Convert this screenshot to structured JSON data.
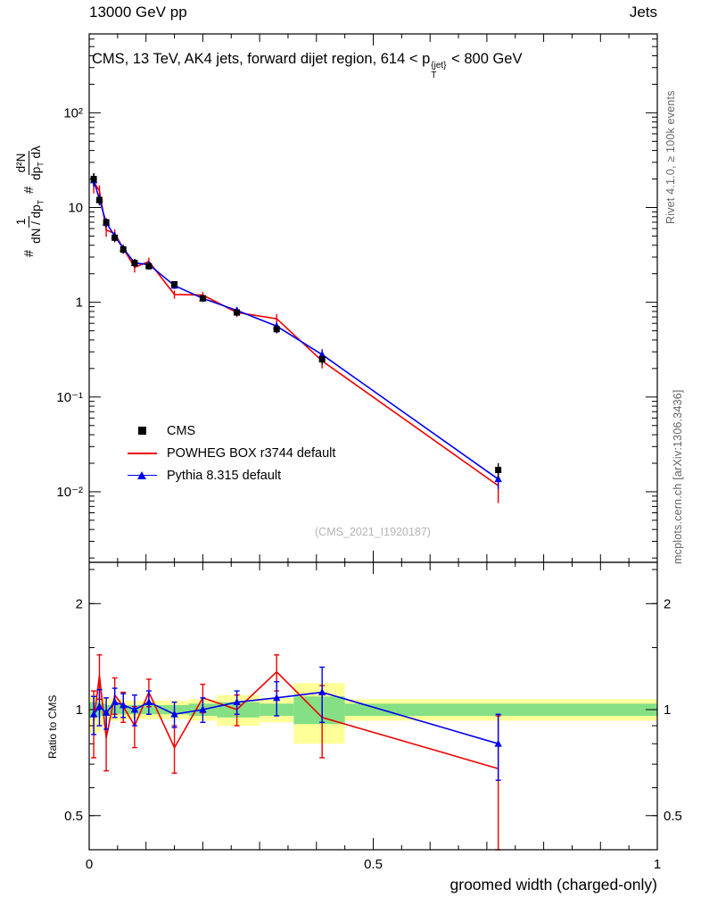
{
  "header": {
    "left": "13000 GeV pp",
    "right": "Jets"
  },
  "title": {
    "pre": "CMS, 13 TeV, AK4 jets, forward dijet region, 614 < p",
    "sup": "{jet}",
    "sub": "T",
    "post": " < 800 GeV"
  },
  "watermark": "(CMS_2021_I1920187)",
  "side_notes": {
    "top_right": "Rivet 4.1.0, ≥ 100k events",
    "bottom_right": "mcplots.cern.ch [arXiv:1306.3436]"
  },
  "legend": {
    "items": [
      {
        "label": "CMS",
        "marker": "square",
        "color": "#000000"
      },
      {
        "label": "POWHEG BOX r3744 default",
        "marker": "line",
        "color": "#ee0000"
      },
      {
        "label": "Pythia 8.315 default",
        "marker": "triangle-line",
        "color": "#0000ee"
      }
    ]
  },
  "axes": {
    "x": {
      "label": "groomed width (charged-only)",
      "min": 0,
      "max": 1,
      "ticks": [
        {
          "v": 0,
          "label": "0"
        },
        {
          "v": 0.5,
          "label": "0.5"
        },
        {
          "v": 1,
          "label": "1"
        }
      ]
    },
    "y_main": {
      "log": true,
      "min": 0.0018,
      "max": 680,
      "ticks": [
        {
          "v": 100,
          "label": "10²"
        },
        {
          "v": 10,
          "label": "10"
        },
        {
          "v": 1,
          "label": "1"
        },
        {
          "v": 0.1,
          "label": "10⁻¹"
        },
        {
          "v": 0.01,
          "label": "10⁻²"
        }
      ],
      "label": {
        "hash1": "#",
        "frac1_num": "1",
        "frac1_den_pre": "dN / dp",
        "frac1_den_sub": "T",
        "hash2": "#",
        "frac2_num": "d²N",
        "frac2_den_pre": "dp",
        "frac2_den_sub": "T",
        "frac2_den_post": " dλ"
      }
    },
    "y_ratio": {
      "log": true,
      "min": 0.4,
      "max": 2.62,
      "label": "Ratio to CMS",
      "ticks": [
        {
          "v": 0.5,
          "label": "0.5"
        },
        {
          "v": 1,
          "label": "1"
        },
        {
          "v": 2,
          "label": "2"
        }
      ],
      "minor_ticks": [
        0.4,
        0.5,
        0.6,
        0.7,
        0.8,
        0.9,
        1,
        1.5,
        2,
        2.5
      ]
    }
  },
  "chart_data": [
    {
      "panel": "main",
      "type": "line",
      "title": "CMS, 13 TeV, AK4 jets, forward dijet region, 614 < p_T^{jet} < 800 GeV",
      "xlabel": "groomed width (charged-only)",
      "ylog": true,
      "xlim": [
        0,
        1
      ],
      "ylim": [
        0.0018,
        680
      ],
      "x": [
        0.008,
        0.018,
        0.03,
        0.045,
        0.06,
        0.08,
        0.105,
        0.15,
        0.2,
        0.26,
        0.33,
        0.41,
        0.72
      ],
      "series": [
        {
          "name": "CMS",
          "color": "#000000",
          "marker": "square",
          "line": false,
          "y": [
            20,
            12,
            7,
            4.8,
            3.6,
            2.6,
            2.4,
            1.55,
            1.1,
            0.78,
            0.52,
            0.25,
            0.017
          ],
          "yerr": [
            3,
            1.4,
            0.7,
            0.5,
            0.36,
            0.26,
            0.19,
            0.12,
            0.09,
            0.06,
            0.05,
            0.03,
            0.003
          ]
        },
        {
          "name": "POWHEG BOX r3744 default",
          "color": "#ee0000",
          "marker": "none",
          "line": true,
          "y": [
            18.6,
            15,
            5.8,
            5.3,
            3.7,
            2.34,
            2.69,
            1.21,
            1.19,
            0.78,
            0.67,
            0.24,
            0.0116
          ],
          "yerr": [
            4.5,
            2.2,
            0.9,
            0.6,
            0.37,
            0.28,
            0.27,
            0.12,
            0.1,
            0.08,
            0.08,
            0.04,
            0.004
          ]
        },
        {
          "name": "Pythia 8.315 default",
          "color": "#0000ee",
          "marker": "triangle",
          "line": true,
          "y": [
            19.4,
            12.2,
            6.9,
            5.0,
            3.7,
            2.6,
            2.5,
            1.5,
            1.1,
            0.82,
            0.56,
            0.28,
            0.0136
          ],
          "yerr": [
            2.9,
            1.5,
            0.7,
            0.5,
            0.3,
            0.26,
            0.2,
            0.12,
            0.09,
            0.07,
            0.06,
            0.04,
            0.003
          ]
        }
      ]
    },
    {
      "panel": "ratio",
      "type": "line",
      "ylabel": "Ratio to CMS",
      "ylog": true,
      "xlim": [
        0,
        1
      ],
      "ylim": [
        0.4,
        2.62
      ],
      "band_colors": {
        "outer": "#ffff99",
        "inner": "#85e085"
      },
      "bands": [
        {
          "x0": 0,
          "x1": 0.02,
          "outer": [
            0.86,
            1.1
          ],
          "inner": [
            0.95,
            1.05
          ]
        },
        {
          "x0": 0.02,
          "x1": 0.03,
          "outer": [
            0.9,
            1.08
          ],
          "inner": [
            0.96,
            1.04
          ]
        },
        {
          "x0": 0.03,
          "x1": 0.045,
          "outer": [
            0.93,
            1.07
          ],
          "inner": [
            0.97,
            1.03
          ]
        },
        {
          "x0": 0.045,
          "x1": 0.06,
          "outer": [
            0.93,
            1.07
          ],
          "inner": [
            0.97,
            1.03
          ]
        },
        {
          "x0": 0.06,
          "x1": 0.075,
          "outer": [
            0.94,
            1.06
          ],
          "inner": [
            0.97,
            1.03
          ]
        },
        {
          "x0": 0.075,
          "x1": 0.1,
          "outer": [
            0.94,
            1.06
          ],
          "inner": [
            0.97,
            1.03
          ]
        },
        {
          "x0": 0.1,
          "x1": 0.13,
          "outer": [
            0.94,
            1.06
          ],
          "inner": [
            0.97,
            1.03
          ]
        },
        {
          "x0": 0.13,
          "x1": 0.175,
          "outer": [
            0.94,
            1.06
          ],
          "inner": [
            0.97,
            1.03
          ]
        },
        {
          "x0": 0.175,
          "x1": 0.225,
          "outer": [
            0.93,
            1.07
          ],
          "inner": [
            0.96,
            1.04
          ]
        },
        {
          "x0": 0.225,
          "x1": 0.3,
          "outer": [
            0.9,
            1.1
          ],
          "inner": [
            0.95,
            1.05
          ]
        },
        {
          "x0": 0.3,
          "x1": 0.36,
          "outer": [
            0.92,
            1.08
          ],
          "inner": [
            0.96,
            1.04
          ]
        },
        {
          "x0": 0.36,
          "x1": 0.45,
          "outer": [
            0.8,
            1.19
          ],
          "inner": [
            0.91,
            1.09
          ]
        },
        {
          "x0": 0.45,
          "x1": 1,
          "outer": [
            0.93,
            1.07
          ],
          "inner": [
            0.96,
            1.04
          ]
        }
      ],
      "x": [
        0.008,
        0.018,
        0.03,
        0.045,
        0.06,
        0.08,
        0.105,
        0.15,
        0.2,
        0.26,
        0.33,
        0.41,
        0.72
      ],
      "series": [
        {
          "name": "POWHEG BOX r3744 default",
          "color": "#ee0000",
          "marker": "none",
          "line": true,
          "y": [
            0.93,
            1.25,
            0.83,
            1.1,
            1.02,
            0.9,
            1.12,
            0.78,
            1.08,
            1.0,
            1.28,
            0.95,
            0.68
          ],
          "yerr": [
            0.2,
            0.18,
            0.16,
            0.13,
            0.1,
            0.12,
            0.1,
            0.12,
            0.1,
            0.1,
            0.15,
            0.22,
            0.28
          ]
        },
        {
          "name": "Pythia 8.315 default",
          "color": "#0000ee",
          "marker": "triangle",
          "line": true,
          "y": [
            0.97,
            1.02,
            0.98,
            1.05,
            1.03,
            1.0,
            1.05,
            0.97,
            1.0,
            1.05,
            1.08,
            1.12,
            0.8
          ],
          "yerr": [
            0.12,
            0.12,
            0.1,
            0.1,
            0.08,
            0.1,
            0.08,
            0.08,
            0.08,
            0.08,
            0.12,
            0.2,
            0.17
          ]
        }
      ]
    }
  ]
}
